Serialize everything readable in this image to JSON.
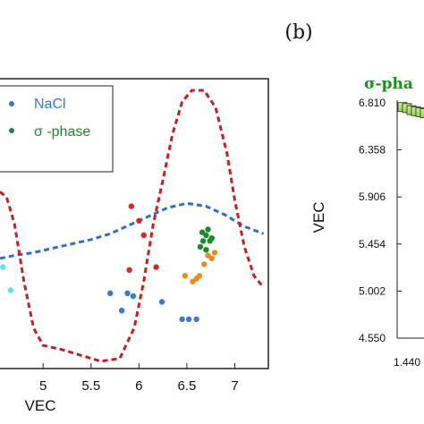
{
  "chart_data": [
    {
      "type": "scatter",
      "xlabel": "VEC",
      "x_ticks": [
        "5",
        "5.5",
        "6",
        "6.5",
        "7"
      ],
      "xlim": [
        4.55,
        7.35
      ],
      "ylim": [
        0,
        10
      ],
      "legend": [
        {
          "name": "NaCl",
          "color": "#3b78d0"
        },
        {
          "name": "σ -phase",
          "color": "#1a8a2a"
        }
      ],
      "series": [
        {
          "key": "nacl",
          "color": "#3b78d0",
          "points": [
            [
              5.7,
              2.6
            ],
            [
              5.82,
              2.0
            ],
            [
              5.88,
              2.6
            ],
            [
              5.94,
              2.5
            ],
            [
              6.24,
              2.3
            ],
            [
              6.45,
              1.7
            ],
            [
              6.52,
              1.7
            ],
            [
              6.6,
              1.7
            ]
          ]
        },
        {
          "key": "red",
          "color": "#d02a2a",
          "points": [
            [
              5.92,
              5.6
            ],
            [
              6.0,
              5.1
            ],
            [
              6.05,
              4.6
            ],
            [
              5.9,
              3.4
            ],
            [
              6.18,
              3.5
            ]
          ]
        },
        {
          "key": "orange",
          "color": "#ee8a22",
          "points": [
            [
              6.48,
              3.2
            ],
            [
              6.56,
              3.0
            ],
            [
              6.6,
              3.1
            ],
            [
              6.63,
              3.2
            ],
            [
              6.68,
              3.6
            ],
            [
              6.72,
              3.9
            ],
            [
              6.76,
              3.8
            ],
            [
              6.79,
              4.0
            ]
          ]
        },
        {
          "key": "sigma",
          "color": "#1a8a2a",
          "points": [
            [
              6.64,
              4.2
            ],
            [
              6.67,
              4.4
            ],
            [
              6.7,
              4.6
            ],
            [
              6.72,
              4.8
            ],
            [
              6.66,
              4.7
            ],
            [
              6.74,
              4.4
            ],
            [
              6.7,
              4.1
            ],
            [
              6.76,
              4.5
            ]
          ]
        },
        {
          "key": "cyan",
          "color": "#5fe3ea",
          "points": [
            [
              4.58,
              3.5
            ],
            [
              4.66,
              2.7
            ]
          ]
        }
      ],
      "curves": [
        {
          "key": "blue-dashed",
          "color": "#2f6fd0",
          "points": [
            [
              4.55,
              3.8
            ],
            [
              4.7,
              3.9
            ],
            [
              4.9,
              4.0
            ],
            [
              5.1,
              4.15
            ],
            [
              5.3,
              4.3
            ],
            [
              5.5,
              4.45
            ],
            [
              5.7,
              4.65
            ],
            [
              5.9,
              4.95
            ],
            [
              6.1,
              5.25
            ],
            [
              6.3,
              5.55
            ],
            [
              6.5,
              5.7
            ],
            [
              6.7,
              5.6
            ],
            [
              6.9,
              5.3
            ],
            [
              7.1,
              4.9
            ],
            [
              7.3,
              4.65
            ]
          ]
        },
        {
          "key": "red-dashed",
          "color": "#c22222",
          "points": [
            [
              4.55,
              6.1
            ],
            [
              4.62,
              5.9
            ],
            [
              4.7,
              5.0
            ],
            [
              4.8,
              3.0
            ],
            [
              4.9,
              1.4
            ],
            [
              5.0,
              0.8
            ],
            [
              5.2,
              0.65
            ],
            [
              5.4,
              0.45
            ],
            [
              5.6,
              0.25
            ],
            [
              5.8,
              0.35
            ],
            [
              5.95,
              1.4
            ],
            [
              6.05,
              3.0
            ],
            [
              6.15,
              5.0
            ],
            [
              6.25,
              6.5
            ],
            [
              6.35,
              8.1
            ],
            [
              6.45,
              9.2
            ],
            [
              6.55,
              9.6
            ],
            [
              6.68,
              9.6
            ],
            [
              6.8,
              9.0
            ],
            [
              6.92,
              7.4
            ],
            [
              7.0,
              5.8
            ],
            [
              7.1,
              4.2
            ],
            [
              7.2,
              3.2
            ],
            [
              7.3,
              2.8
            ]
          ]
        }
      ]
    },
    {
      "type": "bar",
      "panel_label": "(b)",
      "title": "σ-pha",
      "ylabel": "VEC",
      "y_ticks": [
        "6.810",
        "6.358",
        "5.906",
        "5.454",
        "5.002",
        "4.550"
      ],
      "x_ticks": [
        "1.440"
      ],
      "ylim": [
        4.55,
        6.81
      ],
      "marker_color": "#9ad94a",
      "markers": [
        [
          0,
          6.77
        ],
        [
          1,
          6.76
        ],
        [
          2,
          6.74
        ],
        [
          3,
          6.73
        ],
        [
          4,
          6.72
        ],
        [
          5,
          6.71
        ]
      ]
    }
  ]
}
